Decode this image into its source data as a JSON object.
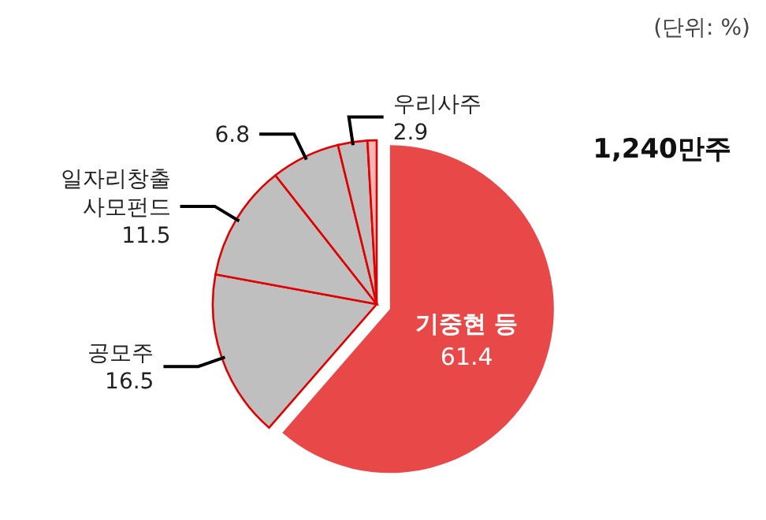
{
  "chart_data": {
    "type": "pie",
    "categories": [
      "기중현 등",
      "공모주",
      "일자리창출 사모펀드",
      null,
      "우리사주",
      null
    ],
    "values": [
      61.4,
      16.5,
      11.5,
      6.8,
      2.9,
      0.9
    ],
    "colors": [
      "#e84848",
      "#bfbfbf",
      "#bfbfbf",
      "#bfbfbf",
      "#bfbfbf",
      "#f5b5b5"
    ],
    "value_labels": [
      "61.4",
      "16.5",
      "11.5",
      "6.8",
      "2.9",
      null
    ],
    "annotations": [
      "(단위: %)",
      "1,240만주"
    ]
  }
}
